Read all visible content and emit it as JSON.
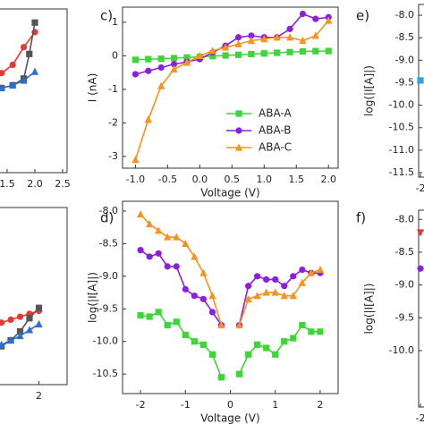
{
  "chart_data": [
    {
      "type": "line",
      "xlim": [
        1.05,
        2.58
      ],
      "ylim": [
        0,
        1.2
      ],
      "xticks": [
        1.5,
        {
          "value": 2.0,
          "label": "2.0"
        },
        2.5
      ],
      "series": [
        {
          "color": "#e53935",
          "marker": "circle",
          "x": [
            1.4,
            1.6,
            1.8,
            2.0
          ],
          "values": [
            0.73,
            0.79,
            0.92,
            1.03
          ]
        },
        {
          "color": "#555555",
          "marker": "square",
          "x": [
            1.4,
            1.6,
            1.8,
            1.9,
            2.0
          ],
          "values": [
            0.62,
            0.64,
            0.69,
            0.87,
            1.1
          ]
        },
        {
          "color": "#2a6fd6",
          "marker": "triangle",
          "x": [
            1.4,
            1.6,
            1.8,
            2.0
          ],
          "values": [
            0.62,
            0.64,
            0.675,
            0.74
          ]
        }
      ]
    },
    {
      "type": "line",
      "xlim": [
        0.6,
        2.6
      ],
      "ylim": [
        0,
        1.2
      ],
      "xticks": [
        2
      ],
      "series": [
        {
          "color": "#e53935",
          "marker": "circle",
          "x": [
            1.2,
            1.4,
            1.6,
            1.8,
            2.0
          ],
          "values": [
            0.42,
            0.44,
            0.46,
            0.48,
            0.5
          ]
        },
        {
          "color": "#555555",
          "marker": "square",
          "x": [
            1.2,
            1.4,
            1.6,
            1.8,
            2.0
          ],
          "values": [
            0.26,
            0.3,
            0.36,
            0.45,
            0.52
          ]
        },
        {
          "color": "#2a6fd6",
          "marker": "triangle",
          "x": [
            1.2,
            1.4,
            1.6,
            1.8,
            2.0
          ],
          "values": [
            0.27,
            0.3,
            0.33,
            0.37,
            0.41
          ]
        }
      ]
    },
    {
      "type": "line",
      "label": "c)",
      "x_label": "Voltage (V)",
      "y_label": "I (nA)",
      "legend": "lower right",
      "xlim": [
        -1.2,
        2.15
      ],
      "ylim": [
        -3.35,
        1.45
      ],
      "xticks": [
        {
          "value": -1.0,
          "label": "-1.0"
        },
        -0.5,
        {
          "value": 0.0,
          "label": "0.0"
        },
        0.5,
        {
          "value": 1.0,
          "label": "1.0"
        },
        1.5,
        {
          "value": 2.0,
          "label": "2.0"
        }
      ],
      "yticks": [
        -3,
        -2,
        -1,
        0,
        1
      ],
      "series": [
        {
          "name": "ABA-A",
          "color": "#3fd43a",
          "marker": "square",
          "x": [
            -1.0,
            -0.8,
            -0.6,
            -0.4,
            -0.2,
            0.0,
            0.2,
            0.4,
            0.6,
            0.8,
            1.0,
            1.2,
            1.4,
            1.6,
            1.8,
            2.0
          ],
          "values": [
            -0.12,
            -0.1,
            -0.09,
            -0.07,
            -0.05,
            -0.03,
            -0.01,
            0.01,
            0.03,
            0.05,
            0.07,
            0.09,
            0.11,
            0.13,
            0.14,
            0.14
          ]
        },
        {
          "name": "ABA-B",
          "color": "#8a1fe0",
          "marker": "circle",
          "x": [
            -1.0,
            -0.8,
            -0.6,
            -0.4,
            -0.2,
            0.0,
            0.2,
            0.4,
            0.6,
            0.8,
            1.0,
            1.2,
            1.4,
            1.6,
            1.8,
            2.0
          ],
          "values": [
            -0.55,
            -0.45,
            -0.35,
            -0.25,
            -0.18,
            -0.1,
            0.1,
            0.3,
            0.55,
            0.6,
            0.55,
            0.55,
            0.8,
            1.25,
            1.1,
            1.15
          ]
        },
        {
          "name": "ABA-C",
          "color": "#f7931e",
          "marker": "triangle",
          "x": [
            -1.0,
            -0.8,
            -0.6,
            -0.4,
            -0.2,
            0.0,
            0.2,
            0.4,
            0.6,
            0.8,
            1.0,
            1.2,
            1.4,
            1.6,
            1.8,
            2.0
          ],
          "values": [
            -3.1,
            -1.9,
            -0.9,
            -0.4,
            -0.2,
            0.0,
            0.15,
            0.25,
            0.35,
            0.45,
            0.5,
            0.55,
            0.55,
            0.45,
            0.6,
            1.05
          ]
        }
      ]
    },
    {
      "type": "line",
      "label": "d)",
      "x_label": "Voltage (V)",
      "y_label": "log(|I[A]|)",
      "xlim": [
        -2.4,
        2.4
      ],
      "ylim": [
        -10.8,
        -7.85
      ],
      "xticks": [
        -2,
        -1,
        0,
        1,
        2
      ],
      "yticks": [
        {
          "value": -8.0,
          "label": "-8.0"
        },
        -8.5,
        {
          "value": -9.0,
          "label": "-9.0"
        },
        -9.5,
        {
          "value": -10.0,
          "label": "-10.0"
        },
        -10.5
      ],
      "series": [
        {
          "color": "#3fd43a",
          "marker": "square",
          "x": [
            -2.0,
            -1.8,
            -1.6,
            -1.4,
            -1.2,
            -1.0,
            -0.8,
            -0.6,
            -0.4,
            -0.2,
            0.0,
            0.2,
            0.4,
            0.6,
            0.8,
            1.0,
            1.2,
            1.4,
            1.6,
            1.8,
            2.0
          ],
          "values": [
            -9.6,
            -9.62,
            -9.55,
            -9.75,
            -9.7,
            -9.9,
            -10.0,
            -10.05,
            -10.2,
            -10.55,
            null,
            -10.5,
            -10.2,
            -10.05,
            -10.1,
            -10.2,
            -10.0,
            -9.95,
            -9.75,
            -9.85,
            -9.85
          ]
        },
        {
          "color": "#8a1fe0",
          "marker": "circle",
          "x": [
            -2.0,
            -1.8,
            -1.6,
            -1.4,
            -1.2,
            -1.0,
            -0.8,
            -0.6,
            -0.4,
            -0.2,
            0.0,
            0.2,
            0.4,
            0.6,
            0.8,
            1.0,
            1.2,
            1.4,
            1.6,
            1.8,
            2.0
          ],
          "values": [
            -8.6,
            -8.7,
            -8.65,
            -8.85,
            -8.85,
            -9.2,
            -9.3,
            -9.35,
            -9.55,
            -9.75,
            null,
            -9.75,
            -9.15,
            -9.0,
            -9.05,
            -9.05,
            -9.15,
            -9.0,
            -8.9,
            -8.95,
            -8.95
          ]
        },
        {
          "color": "#f7931e",
          "marker": "triangle",
          "x": [
            -2.0,
            -1.8,
            -1.6,
            -1.4,
            -1.2,
            -1.0,
            -0.8,
            -0.6,
            -0.4,
            -0.2,
            0.0,
            0.2,
            0.4,
            0.6,
            0.8,
            1.0,
            1.2,
            1.4,
            1.6,
            1.8,
            2.0
          ],
          "values": [
            -8.05,
            -8.2,
            -8.3,
            -8.4,
            -8.4,
            -8.5,
            -8.7,
            -8.95,
            -9.3,
            -9.75,
            null,
            -9.75,
            -9.35,
            -9.3,
            -9.25,
            -9.25,
            -9.3,
            -9.3,
            -9.1,
            -8.95,
            -8.9
          ]
        }
      ]
    },
    {
      "type": "line",
      "label": "e)",
      "y_label": "log(|I[A]|)",
      "xlim": [
        -2.1,
        2.1
      ],
      "ylim": [
        -11.6,
        -7.76
      ],
      "xticks": [
        -2
      ],
      "yticks": [
        {
          "value": -8.0,
          "label": "-8.0"
        },
        -8.5,
        {
          "value": -9.0,
          "label": "-9.0"
        },
        -9.5,
        {
          "value": -10.0,
          "label": "-10.0"
        },
        -10.5,
        {
          "value": -11.0,
          "label": "-11.0"
        },
        -11.5
      ],
      "series": [
        {
          "color": "#29a8e0",
          "marker": "square",
          "x": [
            -2.0
          ],
          "values": [
            -9.45
          ]
        }
      ]
    },
    {
      "type": "line",
      "label": "f)",
      "y_label": "log(|I[A]|)",
      "xlim": [
        -2.1,
        2.1
      ],
      "ylim": [
        -10.86,
        -7.86
      ],
      "xticks": [
        -2
      ],
      "yticks": [
        {
          "value": -8.0,
          "label": "-8.0"
        },
        -8.5,
        {
          "value": -9.0,
          "label": "-9.0"
        },
        -9.5,
        {
          "value": -10.0,
          "label": "-10.0"
        }
      ],
      "series": [
        {
          "color": "#e53935",
          "marker": "triangle-down",
          "x": [
            -2.0
          ],
          "values": [
            -8.2
          ]
        },
        {
          "color": "#8a1fe0",
          "marker": "circle",
          "x": [
            -2.0
          ],
          "values": [
            -8.75
          ]
        }
      ]
    }
  ]
}
